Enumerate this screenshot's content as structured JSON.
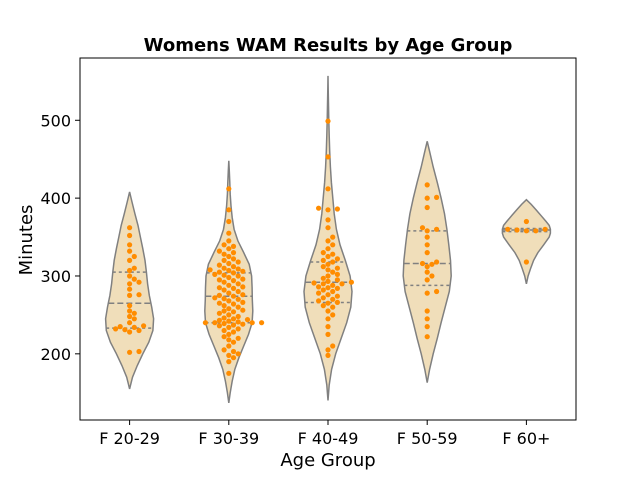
{
  "chart_data": {
    "type": "violin",
    "title": "Womens WAM Results by Age Group",
    "xlabel": "Age Group",
    "ylabel": "Minutes",
    "ylim": [
      115,
      580
    ],
    "yticks": [
      200,
      300,
      400,
      500
    ],
    "grid": false,
    "legend": "none",
    "colors": {
      "violin_fill": "#f0deba",
      "violin_edge": "#808080",
      "points": "#ff8c00",
      "quartile": "#808080"
    },
    "categories": [
      "F 20-29",
      "F 30-39",
      "F 40-49",
      "F 50-59",
      "F 60+"
    ],
    "series": [
      {
        "category": "F 20-29",
        "range": [
          155,
          408
        ],
        "quartiles": [
          233,
          265,
          305
        ],
        "profile": [
          [
            155,
            0.0
          ],
          [
            170,
            0.12
          ],
          [
            185,
            0.32
          ],
          [
            200,
            0.55
          ],
          [
            215,
            0.8
          ],
          [
            230,
            0.97
          ],
          [
            245,
            1.0
          ],
          [
            260,
            0.92
          ],
          [
            275,
            0.82
          ],
          [
            290,
            0.75
          ],
          [
            305,
            0.7
          ],
          [
            320,
            0.64
          ],
          [
            335,
            0.55
          ],
          [
            350,
            0.45
          ],
          [
            365,
            0.35
          ],
          [
            380,
            0.22
          ],
          [
            395,
            0.1
          ],
          [
            408,
            0.0
          ]
        ],
        "points": [
          202,
          203,
          228,
          230,
          231,
          232,
          234,
          235,
          236,
          240,
          245,
          248,
          252,
          255,
          262,
          275,
          276,
          283,
          290,
          292,
          296,
          300,
          307,
          310,
          320,
          325,
          332,
          340,
          352,
          362
        ]
      },
      {
        "category": "F 30-39",
        "range": [
          137,
          448
        ],
        "quartiles": [
          240,
          274,
          304
        ],
        "profile": [
          [
            137,
            0.0
          ],
          [
            150,
            0.06
          ],
          [
            165,
            0.14
          ],
          [
            180,
            0.25
          ],
          [
            195,
            0.42
          ],
          [
            210,
            0.62
          ],
          [
            225,
            0.82
          ],
          [
            240,
            0.97
          ],
          [
            255,
            1.0
          ],
          [
            270,
            0.98
          ],
          [
            285,
            0.97
          ],
          [
            300,
            0.95
          ],
          [
            315,
            0.85
          ],
          [
            330,
            0.62
          ],
          [
            345,
            0.38
          ],
          [
            360,
            0.22
          ],
          [
            375,
            0.14
          ],
          [
            390,
            0.09
          ],
          [
            405,
            0.06
          ],
          [
            420,
            0.04
          ],
          [
            435,
            0.02
          ],
          [
            448,
            0.0
          ]
        ],
        "points": [
          175,
          190,
          195,
          198,
          200,
          203,
          205,
          210,
          215,
          218,
          220,
          222,
          225,
          228,
          230,
          232,
          234,
          236,
          237,
          238,
          239,
          240,
          240,
          240,
          240,
          241,
          242,
          243,
          244,
          245,
          246,
          248,
          250,
          252,
          254,
          255,
          256,
          258,
          260,
          262,
          264,
          265,
          266,
          268,
          270,
          271,
          272,
          274,
          275,
          276,
          278,
          280,
          282,
          284,
          285,
          286,
          288,
          290,
          292,
          294,
          295,
          296,
          298,
          300,
          301,
          302,
          304,
          305,
          306,
          307,
          308,
          309,
          310,
          312,
          314,
          316,
          318,
          320,
          322,
          325,
          328,
          330,
          332,
          335,
          338,
          340,
          345,
          355,
          370,
          385,
          412
        ]
      },
      {
        "category": "F 40-49",
        "range": [
          140,
          557
        ],
        "quartiles": [
          266,
          292,
          318
        ],
        "profile": [
          [
            140,
            0.0
          ],
          [
            160,
            0.05
          ],
          [
            180,
            0.15
          ],
          [
            200,
            0.32
          ],
          [
            220,
            0.55
          ],
          [
            240,
            0.78
          ],
          [
            260,
            0.95
          ],
          [
            280,
            1.0
          ],
          [
            300,
            0.92
          ],
          [
            320,
            0.72
          ],
          [
            340,
            0.5
          ],
          [
            360,
            0.35
          ],
          [
            380,
            0.26
          ],
          [
            400,
            0.2
          ],
          [
            420,
            0.14
          ],
          [
            440,
            0.1
          ],
          [
            460,
            0.07
          ],
          [
            480,
            0.05
          ],
          [
            500,
            0.035
          ],
          [
            520,
            0.02
          ],
          [
            540,
            0.01
          ],
          [
            557,
            0.0
          ]
        ],
        "points": [
          198,
          205,
          210,
          225,
          235,
          245,
          250,
          255,
          260,
          262,
          265,
          266,
          268,
          270,
          272,
          274,
          276,
          278,
          280,
          282,
          284,
          285,
          286,
          288,
          290,
          290,
          291,
          292,
          293,
          295,
          297,
          300,
          302,
          305,
          308,
          310,
          312,
          315,
          318,
          320,
          322,
          325,
          328,
          330,
          335,
          340,
          345,
          350,
          362,
          372,
          385,
          386,
          387,
          412,
          453,
          499
        ]
      },
      {
        "category": "F 50-59",
        "range": [
          163,
          473
        ],
        "quartiles": [
          288,
          316,
          358
        ],
        "profile": [
          [
            163,
            0.0
          ],
          [
            180,
            0.1
          ],
          [
            200,
            0.25
          ],
          [
            220,
            0.42
          ],
          [
            240,
            0.58
          ],
          [
            260,
            0.75
          ],
          [
            280,
            0.92
          ],
          [
            300,
            1.0
          ],
          [
            320,
            0.97
          ],
          [
            340,
            0.9
          ],
          [
            360,
            0.82
          ],
          [
            380,
            0.72
          ],
          [
            400,
            0.58
          ],
          [
            420,
            0.42
          ],
          [
            440,
            0.25
          ],
          [
            460,
            0.1
          ],
          [
            473,
            0.0
          ]
        ],
        "points": [
          222,
          235,
          245,
          255,
          278,
          280,
          295,
          300,
          305,
          312,
          315,
          316,
          318,
          330,
          340,
          350,
          358,
          360,
          362,
          388,
          400,
          401,
          417
        ]
      },
      {
        "category": "F 60+",
        "range": [
          290,
          398
        ],
        "quartiles": [
          357,
          359,
          361
        ],
        "profile": [
          [
            290,
            0.0
          ],
          [
            300,
            0.07
          ],
          [
            310,
            0.18
          ],
          [
            320,
            0.3
          ],
          [
            330,
            0.48
          ],
          [
            340,
            0.72
          ],
          [
            350,
            0.95
          ],
          [
            355,
            1.0
          ],
          [
            360,
            1.0
          ],
          [
            365,
            0.95
          ],
          [
            370,
            0.82
          ],
          [
            378,
            0.6
          ],
          [
            385,
            0.4
          ],
          [
            392,
            0.2
          ],
          [
            398,
            0.0
          ]
        ],
        "points": [
          318,
          358,
          358,
          359,
          360,
          360,
          370
        ]
      }
    ]
  }
}
